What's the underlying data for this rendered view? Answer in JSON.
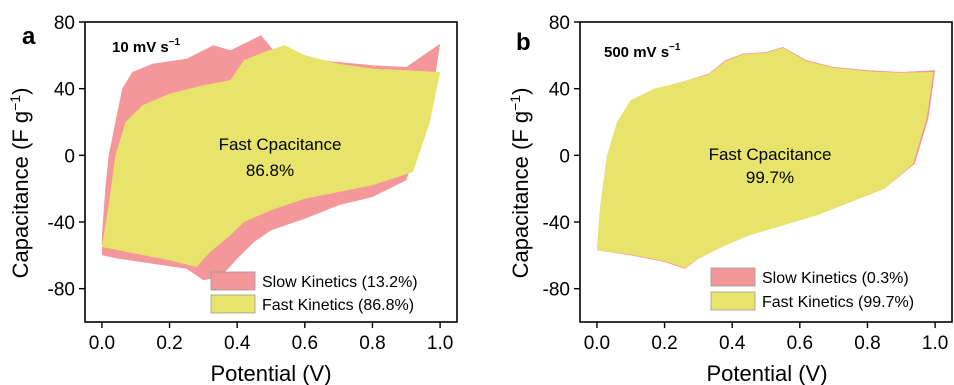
{
  "colors": {
    "slow": "#F4979A",
    "fast": "#E8E36A",
    "axis": "#000000"
  },
  "chart_data": [
    {
      "type": "area",
      "panel_label": "a",
      "rate_label": "10 mV s",
      "rate_exp": "−1",
      "xlabel": "Potential (V)",
      "ylabel": "Capacitance (F g",
      "ylabel_exp": "−1",
      "ylabel_close": ")",
      "xlim": [
        -0.05,
        1.05
      ],
      "ylim": [
        -100,
        80
      ],
      "xticks": [
        "0.0",
        "0.2",
        "0.4",
        "0.6",
        "0.8",
        "1.0"
      ],
      "yticks": [
        "-80",
        "-40",
        "0",
        "40",
        "80"
      ],
      "annotation_line1": "Fast Cpacitance",
      "annotation_line2": "86.8%",
      "legend": [
        {
          "label": "Slow Kinetics (13.2%)"
        },
        {
          "label": "Fast Kinetics (86.8%)"
        }
      ],
      "slow_loop": [
        [
          0.0,
          -60
        ],
        [
          0.0,
          -48
        ],
        [
          0.01,
          -20
        ],
        [
          0.02,
          0
        ],
        [
          0.04,
          20
        ],
        [
          0.06,
          40
        ],
        [
          0.09,
          50
        ],
        [
          0.15,
          55
        ],
        [
          0.25,
          58
        ],
        [
          0.33,
          66
        ],
        [
          0.38,
          63
        ],
        [
          0.42,
          67
        ],
        [
          0.47,
          72
        ],
        [
          0.52,
          60
        ],
        [
          0.6,
          58
        ],
        [
          0.7,
          56
        ],
        [
          0.8,
          54
        ],
        [
          0.9,
          53
        ],
        [
          1.0,
          67
        ],
        [
          0.98,
          40
        ],
        [
          0.95,
          15
        ],
        [
          0.9,
          -15
        ],
        [
          0.8,
          -25
        ],
        [
          0.7,
          -30
        ],
        [
          0.6,
          -38
        ],
        [
          0.5,
          -45
        ],
        [
          0.45,
          -52
        ],
        [
          0.4,
          -62
        ],
        [
          0.35,
          -73
        ],
        [
          0.3,
          -75
        ],
        [
          0.25,
          -68
        ],
        [
          0.15,
          -65
        ],
        [
          0.05,
          -62
        ]
      ],
      "fast_loop": [
        [
          0.0,
          -55
        ],
        [
          0.02,
          -30
        ],
        [
          0.04,
          0
        ],
        [
          0.07,
          20
        ],
        [
          0.12,
          30
        ],
        [
          0.2,
          37
        ],
        [
          0.3,
          42
        ],
        [
          0.38,
          45
        ],
        [
          0.42,
          57
        ],
        [
          0.48,
          62
        ],
        [
          0.54,
          66
        ],
        [
          0.6,
          60
        ],
        [
          0.7,
          55
        ],
        [
          0.8,
          52
        ],
        [
          0.9,
          51
        ],
        [
          1.0,
          50
        ],
        [
          0.97,
          20
        ],
        [
          0.92,
          -10
        ],
        [
          0.8,
          -18
        ],
        [
          0.7,
          -22
        ],
        [
          0.6,
          -26
        ],
        [
          0.5,
          -33
        ],
        [
          0.42,
          -40
        ],
        [
          0.38,
          -48
        ],
        [
          0.32,
          -58
        ],
        [
          0.28,
          -67
        ],
        [
          0.2,
          -63
        ],
        [
          0.1,
          -59
        ]
      ]
    },
    {
      "type": "area",
      "panel_label": "b",
      "rate_label": "500 mV s",
      "rate_exp": "−1",
      "xlabel": "Potential (V)",
      "ylabel": "Capacitance (F g",
      "ylabel_exp": "−1",
      "ylabel_close": ")",
      "xlim": [
        -0.05,
        1.05
      ],
      "ylim": [
        -100,
        80
      ],
      "xticks": [
        "0.0",
        "0.2",
        "0.4",
        "0.6",
        "0.8",
        "1.0"
      ],
      "yticks": [
        "-80",
        "-40",
        "0",
        "40",
        "80"
      ],
      "annotation_line1": "Fast Cpacitance",
      "annotation_line2": "99.7%",
      "legend": [
        {
          "label": "Slow Kinetics (0.3%)"
        },
        {
          "label": "Fast Kinetics (99.7%)"
        }
      ],
      "slow_loop": [
        [
          0.0,
          -57
        ],
        [
          0.01,
          -30
        ],
        [
          0.03,
          0
        ],
        [
          0.06,
          20
        ],
        [
          0.1,
          33
        ],
        [
          0.17,
          40
        ],
        [
          0.25,
          44
        ],
        [
          0.33,
          49
        ],
        [
          0.38,
          57
        ],
        [
          0.43,
          61
        ],
        [
          0.5,
          62
        ],
        [
          0.55,
          65
        ],
        [
          0.62,
          57
        ],
        [
          0.7,
          53
        ],
        [
          0.8,
          51
        ],
        [
          0.9,
          50
        ],
        [
          1.0,
          51
        ],
        [
          0.98,
          22
        ],
        [
          0.94,
          -5
        ],
        [
          0.85,
          -20
        ],
        [
          0.75,
          -28
        ],
        [
          0.65,
          -36
        ],
        [
          0.55,
          -42
        ],
        [
          0.45,
          -48
        ],
        [
          0.38,
          -54
        ],
        [
          0.3,
          -62
        ],
        [
          0.26,
          -68
        ],
        [
          0.2,
          -64
        ],
        [
          0.1,
          -60
        ]
      ],
      "fast_loop": [
        [
          0.0,
          -57
        ],
        [
          0.01,
          -30
        ],
        [
          0.03,
          0
        ],
        [
          0.06,
          20
        ],
        [
          0.1,
          33
        ],
        [
          0.17,
          40
        ],
        [
          0.25,
          44
        ],
        [
          0.33,
          48.5
        ],
        [
          0.38,
          56.5
        ],
        [
          0.43,
          60.5
        ],
        [
          0.5,
          61.5
        ],
        [
          0.55,
          64.5
        ],
        [
          0.62,
          56.5
        ],
        [
          0.7,
          52.5
        ],
        [
          0.8,
          50.5
        ],
        [
          0.9,
          49.5
        ],
        [
          0.995,
          50
        ],
        [
          0.975,
          22
        ],
        [
          0.935,
          -5
        ],
        [
          0.85,
          -20
        ],
        [
          0.75,
          -28
        ],
        [
          0.65,
          -36
        ],
        [
          0.55,
          -42
        ],
        [
          0.45,
          -48
        ],
        [
          0.38,
          -54
        ],
        [
          0.3,
          -62
        ],
        [
          0.26,
          -67.5
        ],
        [
          0.2,
          -63.5
        ],
        [
          0.1,
          -59.5
        ]
      ]
    }
  ]
}
